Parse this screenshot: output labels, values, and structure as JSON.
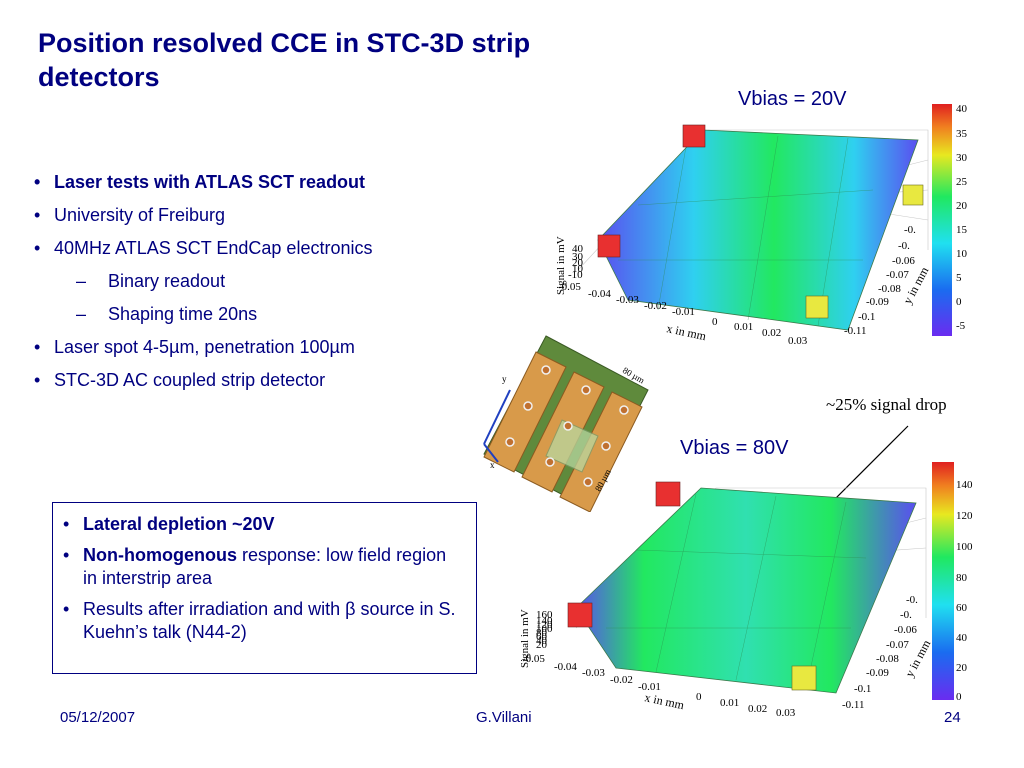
{
  "title": "Position resolved CCE in STC-3D strip detectors",
  "bullets": [
    {
      "text": "Laser tests with ATLAS SCT readout",
      "bold": true
    },
    {
      "text": "University of Freiburg"
    },
    {
      "text": "40MHz ATLAS SCT EndCap electronics"
    },
    {
      "text": "Binary readout",
      "sub": true
    },
    {
      "text": "Shaping time 20ns",
      "sub": true
    },
    {
      "text": "Laser spot 4-5µm, penetration 100µm"
    },
    {
      "text": "STC-3D AC coupled strip detector"
    }
  ],
  "box": {
    "items": [
      {
        "bold": "Lateral depletion ~20V",
        "rest": ""
      },
      {
        "bold": "Non-homogenous",
        "rest": " response: low field region in interstrip area"
      },
      {
        "bold": "",
        "rest": "Results after irradiation and with β source in S. Kuehn’s talk (N44-2)"
      }
    ]
  },
  "plots": {
    "top": {
      "label": "Vbias = 20V",
      "zlabel": "Signal in mV",
      "xlabel": "x in mm",
      "ylabel": "y in mm",
      "x_ticks": [
        "-0.05",
        "-0.04",
        "-0.03",
        "-0.02",
        "-0.01",
        "0",
        "0.01",
        "0.02",
        "0.03"
      ],
      "y_ticks": [
        "-0.",
        "-0.",
        "-0.06",
        "-0.07",
        "-0.08",
        "-0.09",
        "-0.1",
        "-0.11"
      ],
      "z_ticks": [
        "40",
        "30",
        "20",
        "10",
        "-10"
      ],
      "colorbar": [
        "40",
        "35",
        "30",
        "25",
        "20",
        "15",
        "10",
        "5",
        "0",
        "-5"
      ]
    },
    "bottom": {
      "label": "Vbias = 80V",
      "zlabel": "Signal in mV",
      "xlabel": "x in mm",
      "ylabel": "y in mm",
      "x_ticks": [
        "-0.05",
        "-0.04",
        "-0.03",
        "-0.02",
        "-0.01",
        "0",
        "0.01",
        "0.02",
        "0.03"
      ],
      "y_ticks": [
        "-0.",
        "-0.",
        "-0.06",
        "-0.07",
        "-0.08",
        "-0.09",
        "-0.1",
        "-0.11"
      ],
      "z_ticks": [
        "160",
        "140",
        "120",
        "100",
        "80",
        "60",
        "40",
        "20"
      ],
      "colorbar": [
        "140",
        "120",
        "100",
        "80",
        "60",
        "40",
        "20",
        "0"
      ]
    }
  },
  "annotation": "~25% signal drop",
  "detector_labels": {
    "y": "y",
    "x": "x",
    "dim1": "80 µm",
    "dim2": "80 µm"
  },
  "footer": {
    "date": "05/12/2007",
    "author": "G.Villani",
    "page": "24"
  }
}
